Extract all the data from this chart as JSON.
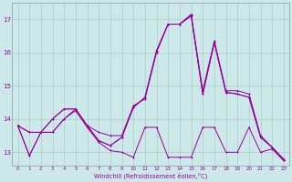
{
  "xlabel": "Windchill (Refroidissement éolien,°C)",
  "background_color": "#cce8e8",
  "grid_color": "#aacccc",
  "line_color": "#990099",
  "xlim": [
    -0.5,
    23.5
  ],
  "ylim": [
    12.6,
    17.5
  ],
  "yticks": [
    13,
    14,
    15,
    16,
    17
  ],
  "xticks": [
    0,
    1,
    2,
    3,
    4,
    5,
    6,
    7,
    8,
    9,
    10,
    11,
    12,
    13,
    14,
    15,
    16,
    17,
    18,
    19,
    20,
    21,
    22,
    23
  ],
  "series": {
    "s1": [
      13.8,
      12.9,
      13.6,
      13.6,
      14.0,
      14.3,
      13.8,
      13.6,
      13.5,
      13.5,
      14.4,
      14.6,
      16.0,
      16.85,
      16.85,
      17.15,
      14.85,
      16.35,
      14.85,
      14.85,
      14.75,
      13.5,
      13.15,
      12.8
    ],
    "s2": [
      13.8,
      12.9,
      13.6,
      13.6,
      14.0,
      14.25,
      13.75,
      13.3,
      13.05,
      13.0,
      12.85,
      13.75,
      13.75,
      12.85,
      12.85,
      12.85,
      13.75,
      13.75,
      13.0,
      13.0,
      13.75,
      13.0,
      13.1,
      12.75
    ],
    "s3": [
      13.8,
      13.6,
      13.6,
      14.0,
      14.3,
      14.3,
      13.8,
      13.35,
      13.2,
      13.45,
      14.35,
      14.65,
      16.05,
      16.85,
      16.85,
      17.1,
      14.75,
      16.3,
      14.8,
      14.75,
      14.65,
      13.45,
      13.15,
      12.75
    ],
    "s4": [
      13.8,
      13.6,
      13.6,
      14.0,
      14.3,
      14.3,
      13.8,
      13.35,
      13.2,
      13.45,
      14.35,
      14.65,
      16.05,
      16.85,
      16.85,
      17.1,
      14.75,
      16.3,
      14.8,
      14.75,
      14.65,
      13.45,
      13.15,
      12.75
    ]
  }
}
